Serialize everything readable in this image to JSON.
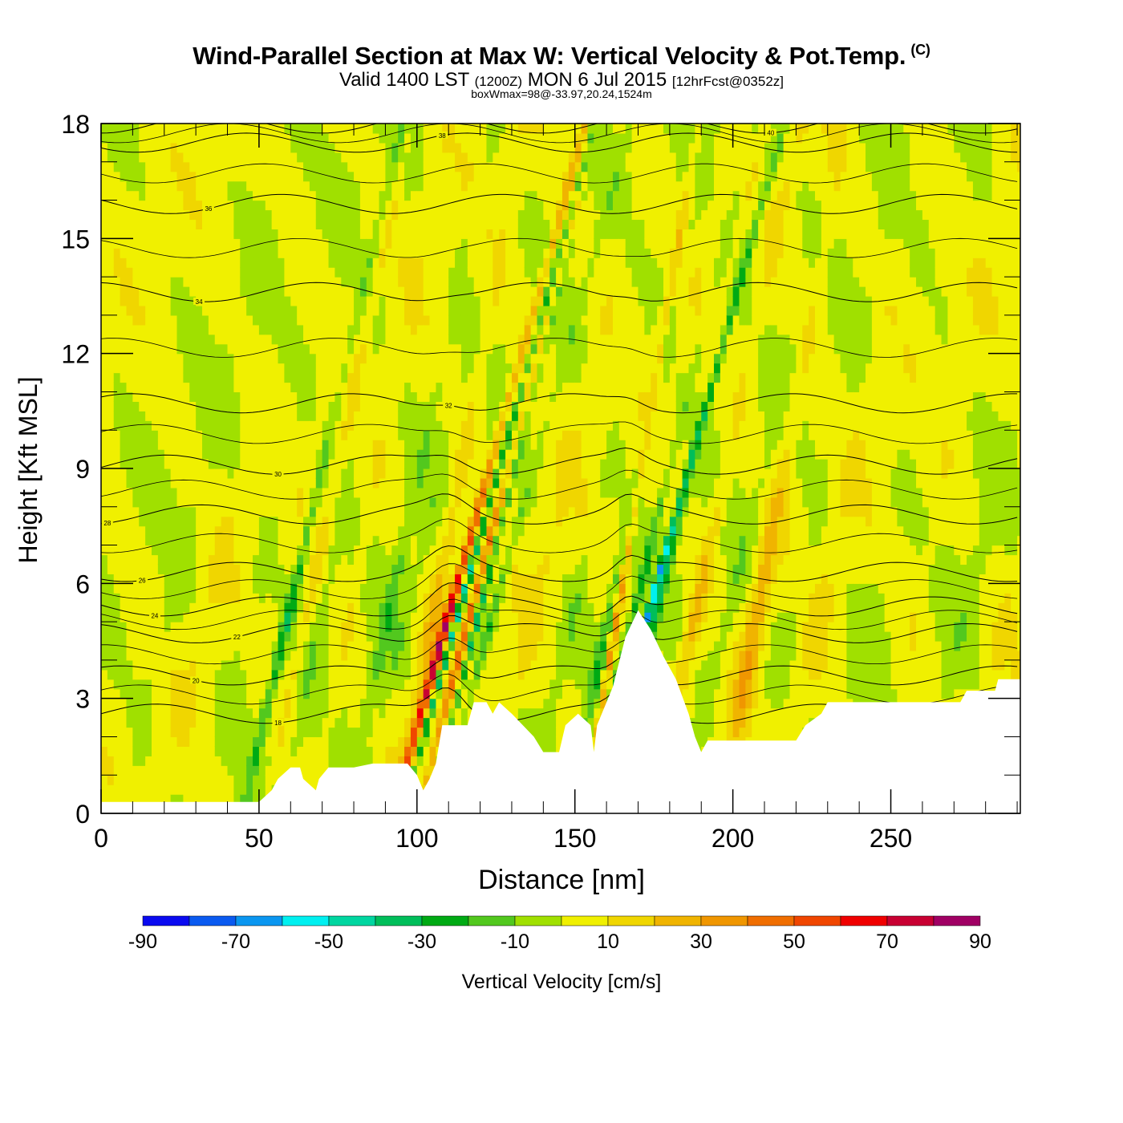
{
  "title": {
    "main": "Wind-Parallel Section at Max W: Vertical Velocity & Pot.Temp.",
    "copyright": "(C)",
    "valid_prefix": "Valid 1400 LST",
    "valid_zulu": "(1200Z)",
    "valid_date": "MON 6 Jul 2015",
    "forecast": "[12hrFcst@0352z]",
    "box_info": "boxWmax=98@-33.97,20.24,1524m"
  },
  "colors": {
    "frame": "#000000",
    "contour": "#000000",
    "terrain": "#ffffff"
  },
  "chart_data": {
    "type": "heatmap",
    "xlabel": "Distance [nm]",
    "ylabel": "Height [Kft MSL]",
    "xlim": [
      0,
      291
    ],
    "ylim": [
      0,
      18
    ],
    "x_ticks": [
      "0",
      "50",
      "100",
      "150",
      "200",
      "250"
    ],
    "x_tick_values": [
      0,
      50,
      100,
      150,
      200,
      250
    ],
    "y_ticks": [
      "0",
      "3",
      "6",
      "9",
      "12",
      "15",
      "18"
    ],
    "y_tick_values": [
      0,
      3,
      6,
      9,
      12,
      15,
      18
    ],
    "colorbar": {
      "label": "Vertical Velocity [cm/s]",
      "tick_labels": [
        "-90",
        "-70",
        "-50",
        "-30",
        "-10",
        "10",
        "30",
        "50",
        "70",
        "90"
      ],
      "tick_values": [
        -90,
        -70,
        -50,
        -30,
        -10,
        10,
        30,
        50,
        70,
        90
      ],
      "levels": [
        -90,
        -80,
        -70,
        -60,
        -50,
        -40,
        -30,
        -20,
        -10,
        0,
        10,
        20,
        30,
        40,
        50,
        60,
        70,
        80,
        90
      ],
      "colors": [
        "#0a0af0",
        "#0a5af0",
        "#0a96f0",
        "#00f0f0",
        "#00d6a0",
        "#00be5a",
        "#00aa14",
        "#52c81e",
        "#a0e000",
        "#f0f000",
        "#f0d600",
        "#f0b400",
        "#f09600",
        "#f06e00",
        "#f04600",
        "#f00000",
        "#c80032",
        "#a00064"
      ]
    },
    "terrain_kft": [
      [
        0,
        0.3
      ],
      [
        50,
        0.3
      ],
      [
        54,
        0.6
      ],
      [
        56,
        0.9
      ],
      [
        60,
        1.2
      ],
      [
        63,
        1.2
      ],
      [
        64,
        0.9
      ],
      [
        68,
        0.6
      ],
      [
        69,
        0.9
      ],
      [
        72,
        1.2
      ],
      [
        80,
        1.2
      ],
      [
        86,
        1.3
      ],
      [
        97,
        1.3
      ],
      [
        100,
        1.0
      ],
      [
        102,
        0.6
      ],
      [
        104,
        0.9
      ],
      [
        106,
        1.3
      ],
      [
        108,
        2.3
      ],
      [
        116,
        2.3
      ],
      [
        118,
        2.9
      ],
      [
        122,
        2.9
      ],
      [
        124,
        2.6
      ],
      [
        126,
        2.9
      ],
      [
        130,
        2.6
      ],
      [
        137,
        2.0
      ],
      [
        140,
        1.6
      ],
      [
        145,
        1.6
      ],
      [
        147,
        2.3
      ],
      [
        151,
        2.6
      ],
      [
        155,
        2.3
      ],
      [
        156,
        1.6
      ],
      [
        157,
        2.3
      ],
      [
        162,
        3.3
      ],
      [
        166,
        4.6
      ],
      [
        170,
        5.3
      ],
      [
        174,
        4.8
      ],
      [
        178,
        4.1
      ],
      [
        182,
        3.5
      ],
      [
        186,
        2.6
      ],
      [
        188,
        2.0
      ],
      [
        190,
        1.6
      ],
      [
        192,
        1.9
      ],
      [
        220,
        1.9
      ],
      [
        223,
        2.3
      ],
      [
        228,
        2.6
      ],
      [
        230,
        2.9
      ],
      [
        272,
        2.9
      ],
      [
        274,
        3.2
      ],
      [
        283,
        3.2
      ],
      [
        284,
        3.5
      ],
      [
        291,
        3.5
      ]
    ],
    "theta_contours": [
      {
        "label": "18",
        "base_kft": 2.6,
        "step": 0,
        "label_at": 56
      },
      {
        "label": "20",
        "base_kft": 3.6,
        "step": 0,
        "label_at": 30
      },
      {
        "label": "22",
        "base_kft": 4.7,
        "step": 0,
        "label_at": 43
      },
      {
        "label": "24",
        "base_kft": 5.4,
        "step": 0,
        "label_at": 17
      },
      {
        "label": "26",
        "base_kft": 6.3,
        "step": 0,
        "label_at": 13
      },
      {
        "label": "28",
        "base_kft": 7.8,
        "step": 0,
        "label_at": 2
      },
      {
        "label": "30",
        "base_kft": 9.1,
        "step": 0,
        "label_at": 56
      },
      {
        "label": "32",
        "base_kft": 10.7,
        "step": 0,
        "label_at": 110
      },
      {
        "label": "34",
        "base_kft": 13.6,
        "step": 0,
        "label_at": 31
      },
      {
        "label": "36",
        "base_kft": 15.9,
        "step": 0,
        "label_at": 34
      },
      {
        "label": "38",
        "base_kft": 17.5,
        "step": 0,
        "label_at": 108
      },
      {
        "label": "40",
        "base_kft": 18.0,
        "step": 0,
        "label_at": 212
      }
    ]
  }
}
